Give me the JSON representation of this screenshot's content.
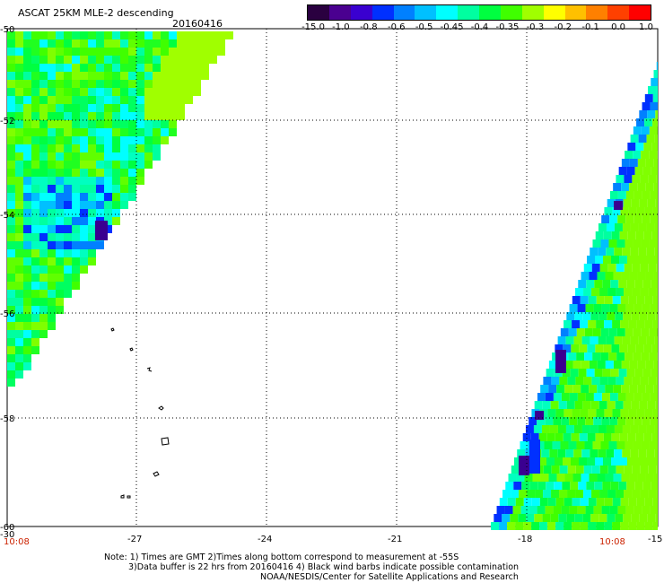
{
  "header": {
    "title": "ASCAT 25KM MLE-2 descending",
    "date": "20160416"
  },
  "colorbar": {
    "labels": [
      "-15.0",
      "-1.0",
      "-0.8",
      "-0.6",
      "-0.5",
      "-0.45",
      "-0.4",
      "-0.35",
      "-0.3",
      "-0.2",
      "-0.1",
      "0.0",
      "1.0"
    ],
    "colors": [
      "#2a0040",
      "#4a0090",
      "#3a00d0",
      "#0030ff",
      "#0080ff",
      "#00c0ff",
      "#00ffff",
      "#00ffa0",
      "#00ff40",
      "#40ff00",
      "#a0ff00",
      "#ffff00",
      "#ffc000",
      "#ff8000",
      "#ff4000",
      "#ff0000"
    ]
  },
  "axes": {
    "x_ticks": [
      "-27",
      "-24",
      "-21",
      "-18",
      "-15"
    ],
    "y_ticks": [
      "-50",
      "-52",
      "-54",
      "-56",
      "-58",
      "-60"
    ],
    "x_corner_left": "-30"
  },
  "times": {
    "left": "10:08",
    "right": "10:08"
  },
  "notes": {
    "line1": "Note: 1) Times are GMT 2)Times along bottom correspond to measurement at -55S",
    "line2": "3)Data buffer is 22 hrs from 20160416 4) Black wind barbs indicate possible contamination",
    "line3": "NOAA/NESDIS/Center for Satellite Applications and Research"
  }
}
